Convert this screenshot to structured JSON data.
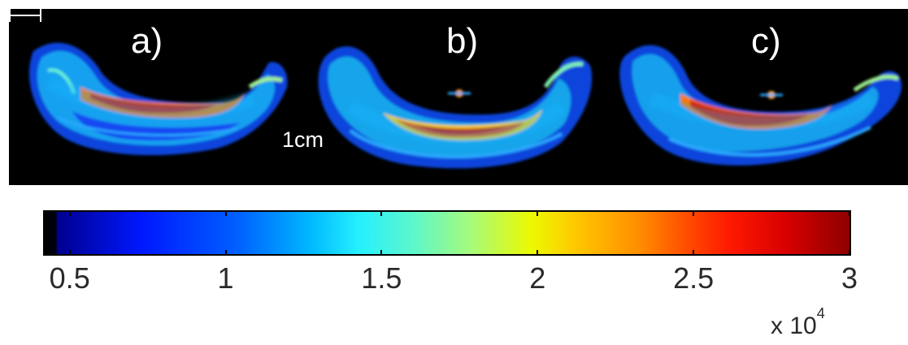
{
  "panels": [
    {
      "label": "a)"
    },
    {
      "label": "b)"
    },
    {
      "label": "c)"
    }
  ],
  "scale_bar": {
    "label": "1cm"
  },
  "colorbar": {
    "ticks": [
      "0.5",
      "1",
      "1.5",
      "2",
      "2.5",
      "3"
    ],
    "tick_values": [
      0.5,
      1,
      1.5,
      2,
      2.5,
      3
    ],
    "range": [
      0.42,
      3.0
    ],
    "exponent_prefix": "x 10",
    "exponent_power": "4",
    "colormap": "jet",
    "colors": {
      "low": "#00008f",
      "mid": "#ecf900",
      "high": "#8f0000"
    }
  }
}
